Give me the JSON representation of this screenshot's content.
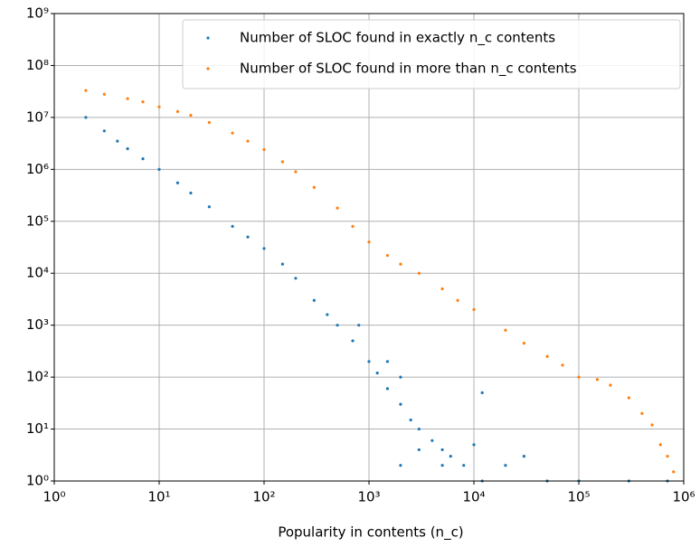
{
  "chart_data": {
    "type": "scatter",
    "xlabel": "Popularity in contents (n_c)",
    "xscale": "log",
    "yscale": "log",
    "grid": true,
    "legend": "upper right",
    "xlim": [
      1,
      1000000
    ],
    "ylim": [
      1,
      1000000000
    ],
    "xticks": [
      {
        "value": 1,
        "label": "10⁰"
      },
      {
        "value": 10,
        "label": "10¹"
      },
      {
        "value": 100,
        "label": "10²"
      },
      {
        "value": 1000,
        "label": "10³"
      },
      {
        "value": 10000,
        "label": "10⁴"
      },
      {
        "value": 100000,
        "label": "10⁵"
      },
      {
        "value": 1000000,
        "label": "10⁶"
      }
    ],
    "yticks": [
      {
        "value": 1,
        "label": "10⁰"
      },
      {
        "value": 10,
        "label": "10¹"
      },
      {
        "value": 100,
        "label": "10²"
      },
      {
        "value": 1000,
        "label": "10³"
      },
      {
        "value": 10000,
        "label": "10⁴"
      },
      {
        "value": 100000,
        "label": "10⁵"
      },
      {
        "value": 1000000,
        "label": "10⁶"
      },
      {
        "value": 10000000,
        "label": "10⁷"
      },
      {
        "value": 100000000,
        "label": "10⁸"
      },
      {
        "value": 1000000000,
        "label": "10⁹"
      }
    ],
    "series": [
      {
        "name": "Number of SLOC found in exactly n_c contents",
        "color": "#1f77b4",
        "x": [
          2,
          3,
          4,
          5,
          7,
          10,
          15,
          20,
          30,
          50,
          70,
          100,
          150,
          200,
          300,
          400,
          500,
          700,
          1000,
          1200,
          1500,
          2000,
          2500,
          3000,
          4000,
          5000,
          6000,
          8000,
          10000,
          12000,
          20000,
          30000,
          50000,
          100000,
          300000,
          700000,
          800,
          1500,
          2000,
          12000,
          3000,
          2000,
          5000
        ],
        "values": [
          10000000,
          5500000,
          3500000,
          2500000,
          1600000,
          1000000,
          550000,
          350000,
          190000,
          80000,
          50000,
          30000,
          15000,
          8000,
          3000,
          1600,
          1000,
          500,
          200,
          120,
          60,
          30,
          15,
          10,
          6,
          4,
          3,
          2,
          5,
          1,
          2,
          3,
          1,
          1,
          1,
          1,
          1000,
          200,
          100,
          50,
          4,
          2,
          2
        ]
      },
      {
        "name": "Number of SLOC found in more than n_c contents",
        "color": "#ff7f0e",
        "x": [
          2,
          3,
          5,
          7,
          10,
          15,
          20,
          30,
          50,
          70,
          100,
          150,
          200,
          300,
          500,
          700,
          1000,
          1500,
          2000,
          3000,
          5000,
          7000,
          10000,
          20000,
          30000,
          50000,
          70000,
          100000,
          150000,
          200000,
          300000,
          400000,
          500000,
          600000,
          700000,
          800000
        ],
        "values": [
          33000000,
          28000000,
          23000000,
          20000000,
          16000000,
          13000000,
          11000000,
          8000000,
          5000000,
          3500000,
          2400000,
          1400000,
          900000,
          450000,
          180000,
          80000,
          40000,
          22000,
          15000,
          10000,
          5000,
          3000,
          2000,
          800,
          450,
          250,
          170,
          100,
          90,
          70,
          40,
          20,
          12,
          5,
          3,
          1.5
        ]
      }
    ]
  }
}
